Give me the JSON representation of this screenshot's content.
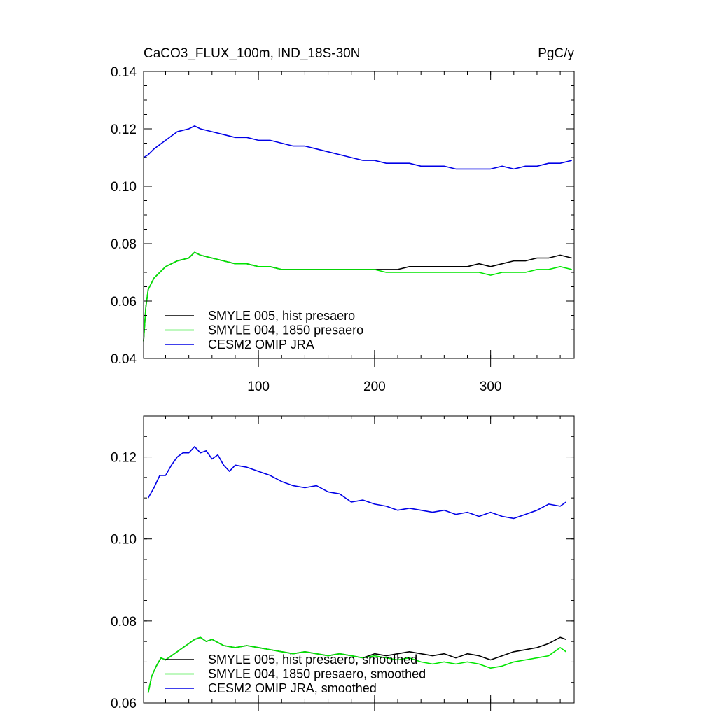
{
  "chart_data": [
    {
      "type": "line",
      "title": "CaCO3_FLUX_100m, IND_18S-30N",
      "units": "PgC/y",
      "xlim": [
        1,
        372
      ],
      "ylim": [
        0.04,
        0.14
      ],
      "x_ticks": [
        100,
        200,
        300
      ],
      "x_tick_labels": [
        "100",
        "200",
        "300"
      ],
      "y_ticks": [
        0.04,
        0.06,
        0.08,
        0.1,
        0.12,
        0.14
      ],
      "y_tick_labels": [
        "0.04",
        "0.06",
        "0.08",
        "0.10",
        "0.12",
        "0.14"
      ],
      "legend_position": "bottom-left",
      "series": [
        {
          "name": "SMYLE 005, hist presaero",
          "color": "#000000",
          "x": [
            1,
            3,
            5,
            10,
            15,
            20,
            30,
            40,
            45,
            50,
            60,
            70,
            80,
            90,
            100,
            110,
            120,
            130,
            140,
            150,
            160,
            170,
            180,
            190,
            200,
            210,
            220,
            230,
            240,
            250,
            260,
            270,
            280,
            290,
            300,
            310,
            320,
            330,
            340,
            350,
            360,
            370
          ],
          "values": [
            0.046,
            0.058,
            0.064,
            0.068,
            0.07,
            0.072,
            0.074,
            0.075,
            0.077,
            0.076,
            0.075,
            0.074,
            0.073,
            0.073,
            0.072,
            0.072,
            0.071,
            0.071,
            0.071,
            0.071,
            0.071,
            0.071,
            0.071,
            0.071,
            0.071,
            0.071,
            0.071,
            0.072,
            0.072,
            0.072,
            0.072,
            0.072,
            0.072,
            0.073,
            0.072,
            0.073,
            0.074,
            0.074,
            0.075,
            0.075,
            0.076,
            0.075
          ]
        },
        {
          "name": "SMYLE 004, 1850 presaero",
          "color": "#00e600",
          "x": [
            1,
            3,
            5,
            10,
            15,
            20,
            30,
            40,
            45,
            50,
            60,
            70,
            80,
            90,
            100,
            110,
            120,
            130,
            140,
            150,
            160,
            170,
            180,
            190,
            200,
            210,
            220,
            230,
            240,
            250,
            260,
            270,
            280,
            290,
            300,
            310,
            320,
            330,
            340,
            350,
            360,
            370
          ],
          "values": [
            0.046,
            0.058,
            0.064,
            0.068,
            0.07,
            0.072,
            0.074,
            0.075,
            0.077,
            0.076,
            0.075,
            0.074,
            0.073,
            0.073,
            0.072,
            0.072,
            0.071,
            0.071,
            0.071,
            0.071,
            0.071,
            0.071,
            0.071,
            0.071,
            0.071,
            0.07,
            0.07,
            0.07,
            0.07,
            0.07,
            0.07,
            0.07,
            0.07,
            0.07,
            0.069,
            0.07,
            0.07,
            0.07,
            0.071,
            0.071,
            0.072,
            0.071
          ]
        },
        {
          "name": "CESM2 OMIP JRA",
          "color": "#0000e6",
          "x": [
            1,
            5,
            10,
            20,
            30,
            40,
            45,
            50,
            60,
            70,
            80,
            90,
            100,
            110,
            120,
            130,
            140,
            150,
            160,
            170,
            180,
            190,
            200,
            210,
            220,
            230,
            240,
            250,
            260,
            270,
            280,
            290,
            300,
            310,
            320,
            330,
            340,
            350,
            360,
            370
          ],
          "values": [
            0.11,
            0.111,
            0.113,
            0.116,
            0.119,
            0.12,
            0.121,
            0.12,
            0.119,
            0.118,
            0.117,
            0.117,
            0.116,
            0.116,
            0.115,
            0.114,
            0.114,
            0.113,
            0.112,
            0.111,
            0.11,
            0.109,
            0.109,
            0.108,
            0.108,
            0.108,
            0.107,
            0.107,
            0.107,
            0.106,
            0.106,
            0.106,
            0.106,
            0.107,
            0.106,
            0.107,
            0.107,
            0.108,
            0.108,
            0.109
          ]
        }
      ]
    },
    {
      "type": "line",
      "xlim": [
        1,
        372
      ],
      "ylim": [
        0.06,
        0.13
      ],
      "x_ticks": [
        100,
        200,
        300
      ],
      "y_ticks": [
        0.06,
        0.08,
        0.1,
        0.12
      ],
      "y_tick_labels": [
        "0.06",
        "0.08",
        "0.10",
        "0.12"
      ],
      "legend_position": "bottom-left",
      "series": [
        {
          "name": "SMYLE 005, hist presaero, smoothed",
          "color": "#000000",
          "x": [
            5,
            8,
            12,
            16,
            20,
            25,
            30,
            35,
            40,
            45,
            50,
            55,
            60,
            70,
            80,
            90,
            100,
            110,
            120,
            130,
            140,
            150,
            160,
            170,
            180,
            190,
            200,
            210,
            220,
            230,
            240,
            250,
            260,
            270,
            280,
            290,
            300,
            310,
            320,
            330,
            340,
            350,
            360,
            365
          ],
          "values": [
            0.0625,
            0.0665,
            0.069,
            0.071,
            0.0705,
            0.0715,
            0.0725,
            0.0735,
            0.0745,
            0.0755,
            0.076,
            0.075,
            0.0755,
            0.074,
            0.0735,
            0.074,
            0.0735,
            0.073,
            0.0725,
            0.072,
            0.0725,
            0.072,
            0.0715,
            0.072,
            0.0715,
            0.071,
            0.072,
            0.0715,
            0.072,
            0.0725,
            0.072,
            0.0715,
            0.072,
            0.071,
            0.072,
            0.0715,
            0.0705,
            0.0715,
            0.0725,
            0.073,
            0.0735,
            0.0745,
            0.076,
            0.0755
          ]
        },
        {
          "name": "SMYLE 004, 1850 presaero, smoothed",
          "color": "#00e600",
          "x": [
            5,
            8,
            12,
            16,
            20,
            25,
            30,
            35,
            40,
            45,
            50,
            55,
            60,
            70,
            80,
            90,
            100,
            110,
            120,
            130,
            140,
            150,
            160,
            170,
            180,
            190,
            200,
            210,
            220,
            230,
            240,
            250,
            260,
            270,
            280,
            290,
            300,
            310,
            320,
            330,
            340,
            350,
            360,
            365
          ],
          "values": [
            0.0625,
            0.0665,
            0.069,
            0.071,
            0.0705,
            0.0715,
            0.0725,
            0.0735,
            0.0745,
            0.0755,
            0.076,
            0.075,
            0.0755,
            0.074,
            0.0735,
            0.074,
            0.0735,
            0.073,
            0.0725,
            0.072,
            0.0725,
            0.072,
            0.0715,
            0.072,
            0.0715,
            0.071,
            0.0715,
            0.071,
            0.0705,
            0.071,
            0.07,
            0.0695,
            0.07,
            0.0695,
            0.07,
            0.0695,
            0.0685,
            0.069,
            0.07,
            0.0705,
            0.071,
            0.0715,
            0.0735,
            0.0725
          ]
        },
        {
          "name": "CESM2 OMIP JRA, smoothed",
          "color": "#0000e6",
          "x": [
            5,
            10,
            15,
            20,
            25,
            30,
            35,
            40,
            45,
            50,
            55,
            60,
            65,
            70,
            75,
            80,
            90,
            100,
            110,
            120,
            130,
            140,
            150,
            160,
            170,
            180,
            190,
            200,
            210,
            220,
            230,
            240,
            250,
            260,
            270,
            280,
            290,
            300,
            310,
            320,
            330,
            340,
            350,
            360,
            365
          ],
          "values": [
            0.11,
            0.1125,
            0.1155,
            0.1155,
            0.118,
            0.12,
            0.121,
            0.121,
            0.1225,
            0.121,
            0.1215,
            0.1195,
            0.1205,
            0.118,
            0.1165,
            0.118,
            0.1175,
            0.1165,
            0.1155,
            0.114,
            0.113,
            0.1125,
            0.113,
            0.1115,
            0.111,
            0.109,
            0.1095,
            0.1085,
            0.108,
            0.107,
            0.1075,
            0.107,
            0.1065,
            0.107,
            0.106,
            0.1065,
            0.1055,
            0.1065,
            0.1055,
            0.105,
            0.106,
            0.107,
            0.1085,
            0.108,
            0.109
          ]
        }
      ]
    }
  ]
}
